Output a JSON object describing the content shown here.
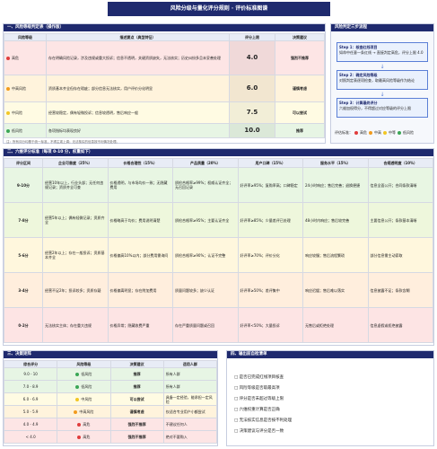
{
  "header": {
    "title": "风险分级与量化评分规则 · 评价标准图谱"
  },
  "section1": {
    "title": "一、风险等级判定表（操作版）",
    "columns": [
      "风险等级",
      "描述要点（典型特征）",
      "评分上限",
      "决策建议"
    ],
    "rows": [
      [
        "高危",
        "存在明确风险记录，涉及违规或重大投诉；信息不透明，关键资质缺失，无法核实；历史纠纷多且未妥善处理",
        "4.0",
        "强烈不推荐"
      ],
      [
        "中高风险",
        "资质基本齐全但存在瑕疵；部分信息无法核实，用户评价分化明显",
        "6.0",
        "谨慎考虑"
      ],
      [
        "中风险",
        "经营较稳定，偶有轻微投诉；信息较透明，售后响应一般",
        "7.5",
        "可以尝试"
      ],
      [
        "低风险",
        "各项指标均表现良好",
        "10.0",
        "推荐"
      ]
    ],
    "note": "注：所有评分均基于统一标准，不得主观上调；无法核实的信息按不利情况处理。"
  },
  "flow": {
    "title": "风险判定三步流程",
    "steps": [
      {
        "title": "Step 1：核查红线项目",
        "text": "如命中任意一条红线 → 直接判定高危，评分上限 4.0"
      },
      {
        "title": "Step 2：确定风险等级",
        "text": "对照判定表逐项检查，取最高风险等级作为结论"
      },
      {
        "title": "Step 3：计算最终评分",
        "text": "六维加权得分，不得超过对应等级的评分上限"
      }
    ],
    "legend_title": "评估标准：",
    "legend": [
      "高危",
      "中高",
      "中等",
      "低风险"
    ]
  },
  "section2": {
    "title": "二、六维评分标准（每项 0-10 分，权重如下）",
    "columns": [
      "评分区间",
      "企业可靠度（25%）",
      "价格合理性（15%）",
      "产品质量（20%）",
      "用户口碑（15%）",
      "服务水平（15%）",
      "合规透明度（10%）"
    ],
    "rows": [
      {
        "range": "9-10分",
        "cells": [
          "经营10年以上，行业头部；无任何违规记录；资质齐全可查",
          "价格透明，与市场均价一致；无隐藏费用",
          "质检合格率≥99%；权威认证齐全；无召回记录",
          "好评率≥95%；复购率高；口碑稳定",
          "24小时响应；售后完善；退换便捷",
          "信息全面公开；合同条款清晰"
        ]
      },
      {
        "range": "7-8分",
        "cells": [
          "经营5年以上；偶有轻微记录；资质齐全",
          "价格略高于均价；费用说明清楚",
          "质检合格率≥95%；主要认证齐全",
          "好评率≥85%；少量差评已处理",
          "48小时内响应；售后较完善",
          "主要信息公开；条款基本清晰"
        ]
      },
      {
        "range": "5-6分",
        "cells": [
          "经营2年以上；存在一般投诉；资质基本齐全",
          "价格偏高10%以内；部分费用需询问",
          "质检合格率≥90%；认证不完整",
          "好评率≥70%；评价分化",
          "响应较慢；售后流程繁琐",
          "部分信息需主动索取"
        ]
      },
      {
        "range": "3-4分",
        "cells": [
          "经营不足2年；投诉较多；资质存疑",
          "价格偏离明显；存在附加费用",
          "质量问题较多；缺少认证",
          "好评率≥50%；差评集中",
          "响应迟缓；售后难以落实",
          "信息披露不足；条款含糊"
        ]
      },
      {
        "range": "0-2分",
        "cells": [
          "无法核实主体；存在重大违规",
          "价格异常；隐藏收费严重",
          "存在严重质量问题或召回",
          "好评率<50%；大量投诉",
          "无售后或拒绝处理",
          "信息虚假或拒绝披露"
        ]
      }
    ]
  },
  "section3": {
    "title": "三、决策矩阵",
    "columns": [
      "综合评分",
      "风险等级",
      "决策建议",
      "适用人群"
    ],
    "rows": [
      [
        "9.0 - 10",
        "低风险",
        "推荐",
        "所有人群"
      ],
      [
        "7.0 - 8.9",
        "低风险",
        "推荐",
        "所有人群"
      ],
      [
        "6.0 - 6.9",
        "中风险",
        "可以尝试",
        "具备一定经验，能承担一定风险"
      ],
      [
        "5.0 - 5.9",
        "中高风险",
        "谨慎考虑",
        "仅适合专业用户小额尝试"
      ],
      [
        "4.0 - 4.9",
        "高危",
        "强烈不推荐",
        "不建议任何人"
      ],
      [
        "< 4.0",
        "高危",
        "强烈不推荐",
        "绝对不要购入"
      ]
    ]
  },
  "section4": {
    "title": "四、输出前自检清单",
    "items": [
      "□ 是否已完成红线项目核查",
      "□ 风险等级是否取最高项",
      "□ 评分是否未超过等级上限",
      "□ 六维权重计算是否正确",
      "□ 无法核实信息是否按不利处理",
      "□ 决策建议与评分是否一致"
    ]
  }
}
